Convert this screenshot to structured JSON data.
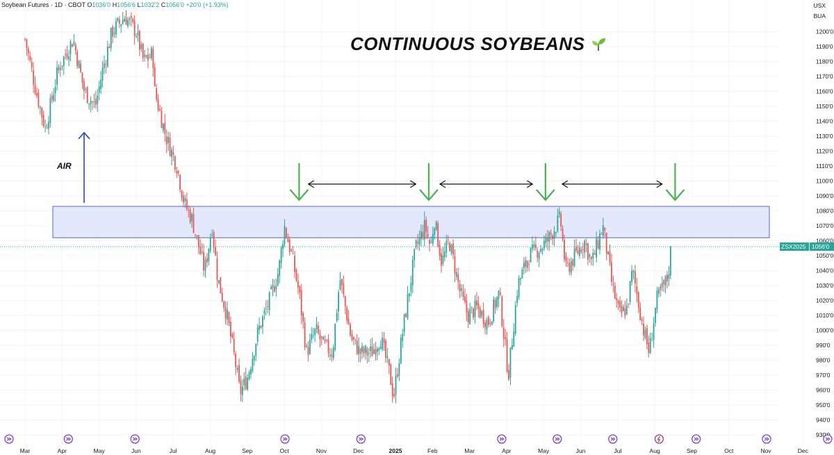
{
  "header": {
    "symbol": "Soybean Futures · 1D · CBOT",
    "o_label": "O",
    "o_value": "1036'0",
    "h_label": "H",
    "h_value": "1056'6",
    "l_label": "L",
    "l_value": "1032'2",
    "c_label": "C",
    "c_value": "1056'0",
    "change": "+20'0 (+1.93%)"
  },
  "units": {
    "currency": "USX",
    "unit": "BUA"
  },
  "annotations": {
    "title": "CONTINUOUS SOYBEANS",
    "air_label": "AIR"
  },
  "price_tag": {
    "symbol": "ZSX2025",
    "value": "1056'0"
  },
  "colors": {
    "up": "#26a69a",
    "down": "#ef5350",
    "zone_fill": "#dfe4fb",
    "zone_stroke": "#4a6ad8",
    "green_arrow": "#4caf50",
    "blue_arrow": "#2845c9",
    "event_icon": "#7e3fbf"
  },
  "chart_data": {
    "type": "candlestick",
    "title": "CONTINUOUS SOYBEANS",
    "ylim": [
      925,
      1210
    ],
    "yticks": [
      {
        "v": 1200,
        "label": "1200'0"
      },
      {
        "v": 1190,
        "label": "1190'0"
      },
      {
        "v": 1180,
        "label": "1180'0"
      },
      {
        "v": 1170,
        "label": "1170'0"
      },
      {
        "v": 1160,
        "label": "1160'0"
      },
      {
        "v": 1150,
        "label": "1150'0"
      },
      {
        "v": 1140,
        "label": "1140'0"
      },
      {
        "v": 1130,
        "label": "1130'0"
      },
      {
        "v": 1120,
        "label": "1120'0"
      },
      {
        "v": 1110,
        "label": "1110'0"
      },
      {
        "v": 1100,
        "label": "1100'0"
      },
      {
        "v": 1090,
        "label": "1090'0"
      },
      {
        "v": 1080,
        "label": "1080'0"
      },
      {
        "v": 1070,
        "label": "1070'0"
      },
      {
        "v": 1060,
        "label": "1060'0"
      },
      {
        "v": 1050,
        "label": "1050'0"
      },
      {
        "v": 1040,
        "label": "1040'0"
      },
      {
        "v": 1030,
        "label": "1030'0"
      },
      {
        "v": 1020,
        "label": "1020'0"
      },
      {
        "v": 1010,
        "label": "1010'0"
      },
      {
        "v": 1000,
        "label": "1000'0"
      },
      {
        "v": 990,
        "label": "990'0"
      },
      {
        "v": 980,
        "label": "980'0"
      },
      {
        "v": 970,
        "label": "970'0"
      },
      {
        "v": 960,
        "label": "960'0"
      },
      {
        "v": 950,
        "label": "950'0"
      },
      {
        "v": 940,
        "label": "940'0"
      },
      {
        "v": 930,
        "label": "930'0"
      }
    ],
    "xticks": [
      {
        "m": 0,
        "label": "Mar"
      },
      {
        "m": 1,
        "label": "Apr"
      },
      {
        "m": 2,
        "label": "May"
      },
      {
        "m": 3,
        "label": "Jun"
      },
      {
        "m": 4,
        "label": "Jul"
      },
      {
        "m": 5,
        "label": "Aug"
      },
      {
        "m": 6,
        "label": "Sep"
      },
      {
        "m": 7,
        "label": "Oct"
      },
      {
        "m": 8,
        "label": "Nov"
      },
      {
        "m": 9,
        "label": "Dec"
      },
      {
        "m": 10,
        "label": "2025",
        "bold": true
      },
      {
        "m": 11,
        "label": "Feb"
      },
      {
        "m": 12,
        "label": "Mar"
      },
      {
        "m": 13,
        "label": "Apr"
      },
      {
        "m": 14,
        "label": "May"
      },
      {
        "m": 15,
        "label": "Jun"
      },
      {
        "m": 16,
        "label": "Jul"
      },
      {
        "m": 17,
        "label": "Aug"
      },
      {
        "m": 18,
        "label": "Sep"
      },
      {
        "m": 19,
        "label": "Oct"
      },
      {
        "m": 20,
        "label": "Nov"
      },
      {
        "m": 21,
        "label": "Dec"
      }
    ],
    "resistance_zone": [
      1062,
      1083
    ],
    "last_price": 1056,
    "price_path": [
      [
        0,
        1195
      ],
      [
        0.3,
        1160
      ],
      [
        0.55,
        1135
      ],
      [
        0.9,
        1175
      ],
      [
        1.1,
        1185
      ],
      [
        1.3,
        1195
      ],
      [
        1.6,
        1160
      ],
      [
        1.9,
        1150
      ],
      [
        2.1,
        1175
      ],
      [
        2.35,
        1200
      ],
      [
        2.7,
        1210
      ],
      [
        3,
        1200
      ],
      [
        3.2,
        1180
      ],
      [
        3.45,
        1185
      ],
      [
        3.5,
        1160
      ],
      [
        3.8,
        1130
      ],
      [
        4.1,
        1110
      ],
      [
        4.3,
        1085
      ],
      [
        4.5,
        1075
      ],
      [
        4.7,
        1055
      ],
      [
        4.85,
        1040
      ],
      [
        5.05,
        1070
      ],
      [
        5.2,
        1035
      ],
      [
        5.45,
        1010
      ],
      [
        5.7,
        975
      ],
      [
        5.8,
        958
      ],
      [
        6.0,
        968
      ],
      [
        6.3,
        1000
      ],
      [
        6.6,
        1020
      ],
      [
        6.85,
        1040
      ],
      [
        7.0,
        1070
      ],
      [
        7.2,
        1050
      ],
      [
        7.4,
        1025
      ],
      [
        7.6,
        985
      ],
      [
        7.85,
        1000
      ],
      [
        8.05,
        990
      ],
      [
        8.3,
        985
      ],
      [
        8.5,
        1035
      ],
      [
        8.8,
        995
      ],
      [
        9.05,
        985
      ],
      [
        9.35,
        985
      ],
      [
        9.6,
        995
      ],
      [
        9.85,
        970
      ],
      [
        9.95,
        955
      ],
      [
        10.2,
        1000
      ],
      [
        10.55,
        1055
      ],
      [
        10.8,
        1070
      ],
      [
        10.95,
        1055
      ],
      [
        11.05,
        1075
      ],
      [
        11.25,
        1045
      ],
      [
        11.45,
        1060
      ],
      [
        11.75,
        1025
      ],
      [
        11.95,
        1010
      ],
      [
        12.2,
        1015
      ],
      [
        12.5,
        1005
      ],
      [
        12.8,
        1025
      ],
      [
        13.05,
        970
      ],
      [
        13.3,
        1030
      ],
      [
        13.6,
        1050
      ],
      [
        13.9,
        1055
      ],
      [
        14.1,
        1060
      ],
      [
        14.45,
        1075
      ],
      [
        14.6,
        1040
      ],
      [
        14.85,
        1050
      ],
      [
        15.1,
        1060
      ],
      [
        15.3,
        1045
      ],
      [
        15.6,
        1070
      ],
      [
        15.85,
        1030
      ],
      [
        16.05,
        1010
      ],
      [
        16.25,
        1015
      ],
      [
        16.4,
        1040
      ],
      [
        16.7,
        1000
      ],
      [
        16.85,
        985
      ],
      [
        17.05,
        1020
      ],
      [
        17.35,
        1035
      ],
      [
        17.45,
        1056
      ]
    ],
    "events": [
      0,
      1.6,
      3.4,
      7.45,
      9.5,
      13.3,
      14.8,
      16.3,
      18.55,
      20.45,
      22.1
    ],
    "warning_event": 17.55,
    "green_arrows": [
      7.4,
      10.9,
      14.05,
      17.55
    ],
    "horizontal_arrows": [
      [
        7.65,
        10.55
      ],
      [
        11.2,
        13.7
      ],
      [
        14.5,
        17.2
      ]
    ]
  }
}
